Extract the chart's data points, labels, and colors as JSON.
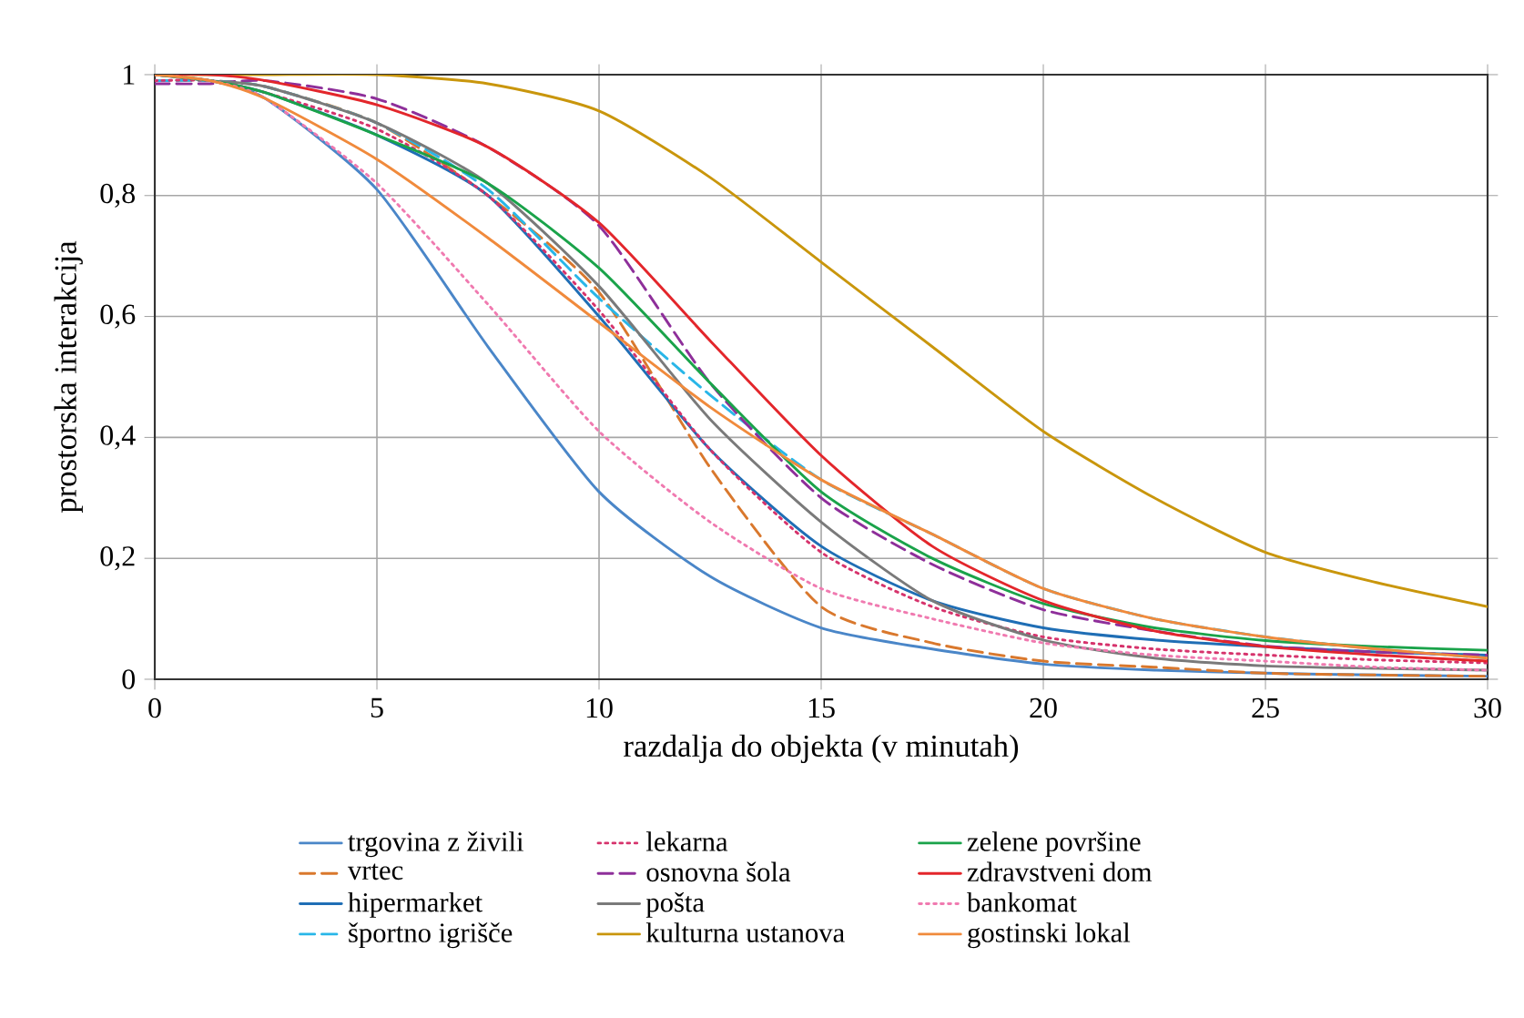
{
  "chart_data": {
    "type": "line",
    "xlabel": "razdalja do objekta (v minutah)",
    "ylabel": "prostorska interakcija",
    "x": [
      0,
      1.25,
      2.5,
      5,
      7.5,
      10,
      12.5,
      15,
      17.5,
      20,
      22.5,
      25,
      27.5,
      30
    ],
    "xlim": [
      0,
      30
    ],
    "xticks": [
      0,
      5,
      10,
      15,
      20,
      25,
      30
    ],
    "ylim": [
      0,
      1
    ],
    "yticks": [
      {
        "value": 0,
        "label": "0"
      },
      {
        "value": 0.2,
        "label": "0,2"
      },
      {
        "value": 0.4,
        "label": "0,4"
      },
      {
        "value": 0.6,
        "label": "0,6"
      },
      {
        "value": 0.8,
        "label": "0,8"
      },
      {
        "value": 1,
        "label": "1"
      }
    ],
    "grid": true,
    "legend": "bottom",
    "series": [
      {
        "name": "trgovina z živili",
        "color": "#4a86c8",
        "line_style": "solid",
        "values": [
          1,
          0.99,
          0.96,
          0.81,
          0.55,
          0.31,
          0.17,
          0.085,
          0.05,
          0.025,
          0.015,
          0.01,
          0.007,
          0.005
        ]
      },
      {
        "name": "vrtec",
        "color": "#d9782d",
        "line_style": "dashed",
        "values": [
          0.99,
          0.99,
          0.98,
          0.92,
          0.8,
          0.64,
          0.35,
          0.12,
          0.06,
          0.03,
          0.02,
          0.01,
          0.007,
          0.005
        ]
      },
      {
        "name": "hipermarket",
        "color": "#1f6eb5",
        "line_style": "solid",
        "values": [
          1,
          0.99,
          0.97,
          0.9,
          0.8,
          0.6,
          0.38,
          0.22,
          0.13,
          0.085,
          0.065,
          0.054,
          0.045,
          0.04
        ]
      },
      {
        "name": "športno igrišče",
        "color": "#29b6e8",
        "line_style": "dashed",
        "values": [
          0.99,
          0.99,
          0.98,
          0.92,
          0.81,
          0.63,
          0.47,
          0.33,
          0.24,
          0.15,
          0.1,
          0.07,
          0.05,
          0.035
        ]
      },
      {
        "name": "lekarna",
        "color": "#d6336c",
        "line_style": "dotted",
        "values": [
          0.99,
          0.99,
          0.97,
          0.91,
          0.8,
          0.61,
          0.38,
          0.21,
          0.12,
          0.07,
          0.05,
          0.04,
          0.032,
          0.027
        ]
      },
      {
        "name": "osnovna šola",
        "color": "#8e2f9a",
        "line_style": "dashed",
        "values": [
          0.985,
          0.985,
          0.99,
          0.96,
          0.88,
          0.75,
          0.49,
          0.3,
          0.19,
          0.115,
          0.08,
          0.055,
          0.045,
          0.04
        ]
      },
      {
        "name": "pošta",
        "color": "#7a7a7a",
        "line_style": "solid",
        "values": [
          1,
          0.99,
          0.98,
          0.92,
          0.82,
          0.65,
          0.43,
          0.26,
          0.13,
          0.065,
          0.035,
          0.022,
          0.018,
          0.015
        ]
      },
      {
        "name": "kulturna ustanova",
        "color": "#c9960c",
        "line_style": "solid",
        "values": [
          1,
          1,
          1,
          1,
          0.985,
          0.94,
          0.83,
          0.69,
          0.55,
          0.41,
          0.3,
          0.21,
          0.16,
          0.12
        ]
      },
      {
        "name": "zelene površine",
        "color": "#1aa34a",
        "line_style": "solid",
        "values": [
          1,
          0.99,
          0.97,
          0.9,
          0.82,
          0.68,
          0.49,
          0.31,
          0.2,
          0.125,
          0.085,
          0.064,
          0.054,
          0.048
        ]
      },
      {
        "name": "zdravstveni dom",
        "color": "#e3262b",
        "line_style": "solid",
        "values": [
          1,
          1,
          0.99,
          0.95,
          0.88,
          0.755,
          0.56,
          0.37,
          0.22,
          0.13,
          0.08,
          0.054,
          0.04,
          0.03
        ]
      },
      {
        "name": "bankomat",
        "color": "#f07ab0",
        "line_style": "dotted",
        "values": [
          1,
          0.99,
          0.96,
          0.82,
          0.62,
          0.41,
          0.26,
          0.15,
          0.1,
          0.06,
          0.04,
          0.03,
          0.02,
          0.015
        ]
      },
      {
        "name": "gostinski lokal",
        "color": "#f08a3c",
        "line_style": "solid",
        "values": [
          1,
          0.99,
          0.96,
          0.86,
          0.73,
          0.59,
          0.45,
          0.33,
          0.24,
          0.15,
          0.1,
          0.07,
          0.05,
          0.035
        ]
      }
    ]
  }
}
